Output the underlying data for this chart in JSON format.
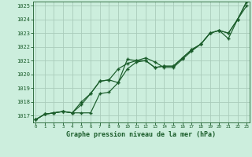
{
  "title": "Graphe pression niveau de la mer (hPa)",
  "background_color": "#cceedd",
  "grid_color": "#aaccbb",
  "line_color": "#1a5c2a",
  "x_labels": [
    "0",
    "1",
    "2",
    "3",
    "4",
    "5",
    "6",
    "7",
    "8",
    "9",
    "10",
    "11",
    "12",
    "13",
    "14",
    "15",
    "16",
    "17",
    "18",
    "19",
    "20",
    "21",
    "22",
    "23"
  ],
  "ylim": [
    1016.5,
    1025.3
  ],
  "yticks": [
    1017,
    1018,
    1019,
    1020,
    1021,
    1022,
    1023,
    1024,
    1025
  ],
  "xlim": [
    -0.3,
    23.3
  ],
  "series1": [
    1016.7,
    1017.1,
    1017.2,
    1017.3,
    1017.2,
    1017.8,
    1018.6,
    1019.5,
    1019.6,
    1020.4,
    1020.8,
    1021.0,
    1021.2,
    1020.9,
    1020.5,
    1020.5,
    1021.1,
    1021.7,
    1022.2,
    1023.0,
    1023.2,
    1022.6,
    1024.0,
    1025.0
  ],
  "series2": [
    1016.7,
    1017.1,
    1017.2,
    1017.3,
    1017.2,
    1018.0,
    1018.6,
    1019.5,
    1019.6,
    1019.4,
    1021.1,
    1021.0,
    1021.0,
    1020.5,
    1020.6,
    1020.6,
    1021.2,
    1021.8,
    1022.2,
    1023.0,
    1023.2,
    1023.0,
    1024.0,
    1025.3
  ],
  "series3": [
    1016.7,
    1017.1,
    1017.2,
    1017.3,
    1017.2,
    1017.2,
    1017.2,
    1018.6,
    1018.7,
    1019.4,
    1020.4,
    1020.9,
    1021.0,
    1020.5,
    1020.6,
    1020.6,
    1021.2,
    1021.8,
    1022.2,
    1023.0,
    1023.2,
    1023.0,
    1024.0,
    1025.3
  ]
}
